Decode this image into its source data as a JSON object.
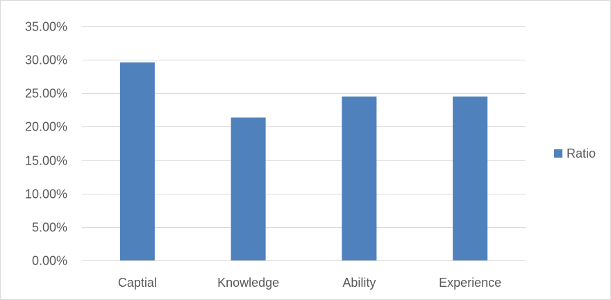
{
  "chart_data": {
    "type": "bar",
    "categories": [
      "Captial",
      "Knowledge",
      "Ability",
      "Experience"
    ],
    "series": [
      {
        "name": "Ratio",
        "values": [
          0.2962,
          0.2136,
          0.2451,
          0.2451
        ],
        "color": "#4f81bd"
      }
    ],
    "ylim": [
      0,
      0.35
    ],
    "y_ticks": [
      0,
      0.05,
      0.1,
      0.15,
      0.2,
      0.25,
      0.3,
      0.35
    ],
    "y_tick_labels": [
      "0.00%",
      "5.00%",
      "10.00%",
      "15.00%",
      "20.00%",
      "25.00%",
      "30.00%",
      "35.00%"
    ],
    "title": "",
    "xlabel": "",
    "ylabel": "",
    "grid": true,
    "gridline_color": "#d9d9d9",
    "axis_line_color": "#d9d9d9",
    "legend_position": "right"
  }
}
